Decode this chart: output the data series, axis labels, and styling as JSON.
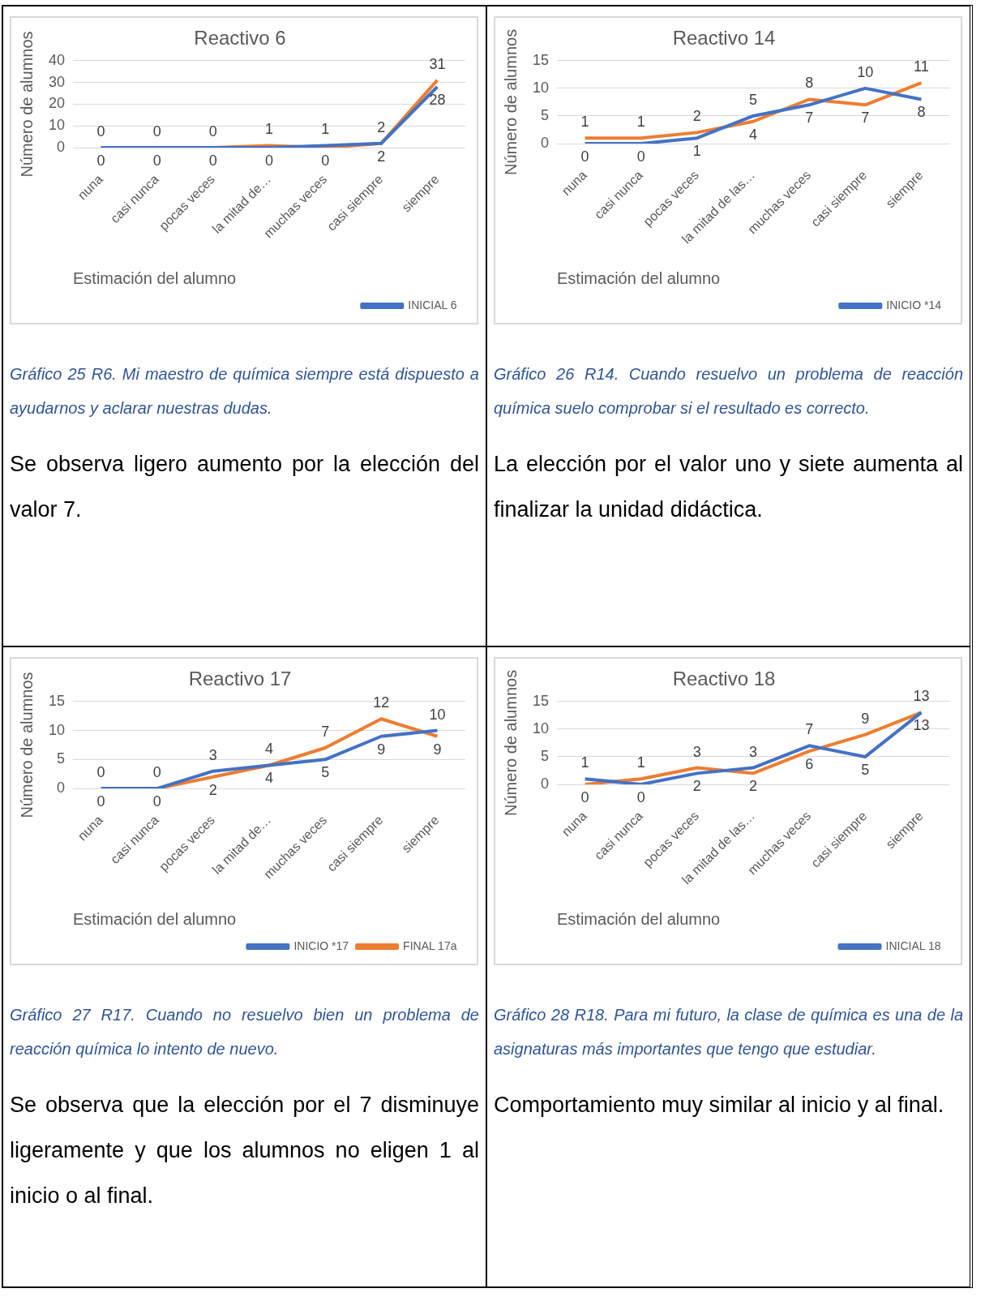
{
  "chart_data": [
    {
      "type": "line",
      "title": "Reactivo 6",
      "xlabel": "Estimación del alumno",
      "ylabel": "Número de alumnos",
      "categories": [
        "nuna",
        "casi nunca",
        "pocas veces",
        "la mitad de…",
        "muchas veces",
        "casi siempre",
        "siempre"
      ],
      "series": [
        {
          "name": "INICIAL 6",
          "color": "#4472c4",
          "values": [
            0,
            0,
            0,
            0,
            1,
            2,
            28
          ]
        },
        {
          "color": "#ed7d31",
          "values": [
            0,
            0,
            0,
            1,
            0,
            2,
            31
          ]
        }
      ],
      "ylim": [
        0,
        40
      ],
      "yticks": [
        0,
        10,
        20,
        30,
        40
      ],
      "grid": "y",
      "legend": "bottom right",
      "marker": "none",
      "line_style": "solid",
      "data_labels": true,
      "annotations": [
        "Gráfico 25 R6. Mi maestro de química siempre está dispuesto a ayudarnos y aclarar nuestras dudas.",
        "Se observa ligero aumento por la elección del valor 7."
      ]
    },
    {
      "type": "line",
      "title": "Reactivo 14",
      "xlabel": "Estimación del alumno",
      "ylabel": "Número de alumnos",
      "categories": [
        "nuna",
        "casi nunca",
        "pocas veces",
        "la mitad de las…",
        "muchas veces",
        "casi siempre",
        "siempre"
      ],
      "series": [
        {
          "name": "INICIO *14",
          "color": "#4472c4",
          "values": [
            0,
            0,
            1,
            5,
            7,
            10,
            8
          ]
        },
        {
          "color": "#ed7d31",
          "values": [
            1,
            1,
            2,
            4,
            8,
            7,
            11
          ]
        }
      ],
      "ylim": [
        0,
        15
      ],
      "yticks": [
        0,
        5,
        10,
        15
      ],
      "grid": "y",
      "legend": "bottom right",
      "marker": "none",
      "line_style": "solid",
      "data_labels": true,
      "annotations": [
        "Gráfico 26 R14. Cuando resuelvo un problema de reacción química suelo comprobar si el resultado es correcto.",
        "La elección por el valor uno y siete aumenta al finalizar la unidad didáctica."
      ]
    },
    {
      "type": "line",
      "title": "Reactivo 17",
      "xlabel": "Estimación del alumno",
      "ylabel": "Número de alumnos",
      "categories": [
        "nuna",
        "casi nunca",
        "pocas veces",
        "la mitad de…",
        "muchas veces",
        "casi siempre",
        "siempre"
      ],
      "series": [
        {
          "name": "INICIO *17",
          "color": "#4472c4",
          "values": [
            0,
            0,
            3,
            4,
            5,
            9,
            10
          ]
        },
        {
          "name": "FINAL 17a",
          "color": "#ed7d31",
          "values": [
            0,
            0,
            2,
            4,
            7,
            12,
            9
          ]
        }
      ],
      "ylim": [
        0,
        15
      ],
      "yticks": [
        0,
        5,
        10,
        15
      ],
      "grid": "y",
      "legend": "bottom right",
      "marker": "none",
      "line_style": "solid",
      "data_labels": true,
      "annotations": [
        "Gráfico 27 R17. Cuando no resuelvo bien un problema de reacción química lo intento de nuevo.",
        "Se observa que la elección por el 7 disminuye ligeramente y que los alumnos no eligen 1 al inicio o al final."
      ]
    },
    {
      "type": "line",
      "title": "Reactivo 18",
      "xlabel": "Estimación del alumno",
      "ylabel": "Número de alumnos",
      "categories": [
        "nuna",
        "casi nunca",
        "pocas veces",
        "la mitad de las…",
        "muchas veces",
        "casi siempre",
        "siempre"
      ],
      "series": [
        {
          "name": "INICIAL 18",
          "color": "#4472c4",
          "values": [
            1,
            0,
            2,
            3,
            7,
            5,
            13
          ]
        },
        {
          "color": "#ed7d31",
          "values": [
            0,
            1,
            3,
            2,
            6,
            9,
            13
          ]
        }
      ],
      "ylim": [
        0,
        15
      ],
      "yticks": [
        0,
        5,
        10,
        15
      ],
      "grid": "y",
      "legend": "bottom right",
      "marker": "none",
      "line_style": "solid",
      "data_labels": true,
      "annotations": [
        "Gráfico 28 R18. Para mi futuro, la clase de química es una de la asignaturas más importantes que tengo que estudiar.",
        "Comportamiento muy similar al inicio y al final."
      ]
    }
  ]
}
